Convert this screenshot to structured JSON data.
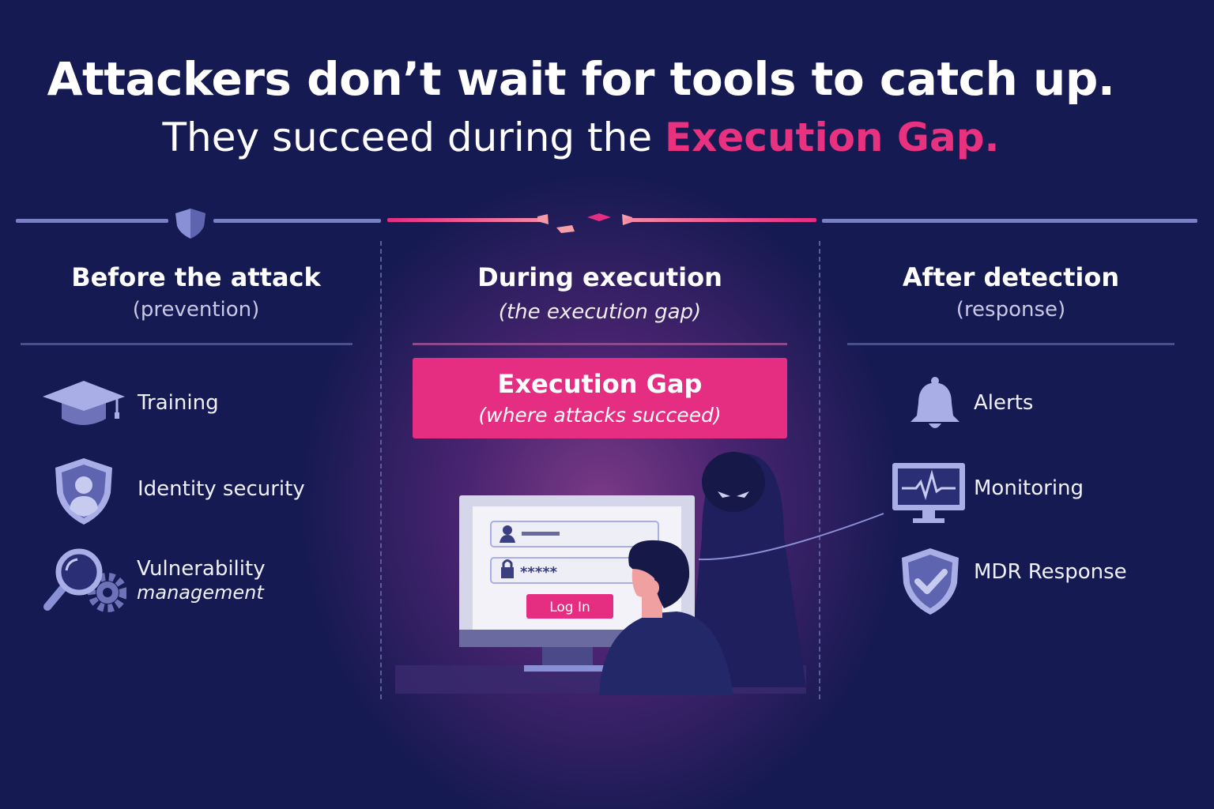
{
  "headline": {
    "line1": "Attackers don’t wait for tools to catch up.",
    "line2_prefix": "They succeed during the ",
    "line2_highlight": "Execution Gap."
  },
  "colors": {
    "background": "#161a52",
    "accent": "#e8327f",
    "timeline_neutral": "#7a80c8"
  },
  "columns": [
    {
      "title": "Before the attack",
      "subtitle": "(prevention)",
      "items": [
        {
          "icon": "graduation-cap-icon",
          "label": "Training"
        },
        {
          "icon": "shield-user-icon",
          "label": "Identity security"
        },
        {
          "icon": "magnifier-gear-icon",
          "label": "Vulnerability",
          "label2": "management"
        }
      ]
    },
    {
      "title": "During execution",
      "subtitle": "(the execution gap)",
      "gap_box": {
        "title": "Execution Gap",
        "subtitle": "(where attacks succeed)"
      },
      "illustration": {
        "login_button": "Log In",
        "password_mask": "*****"
      }
    },
    {
      "title": "After detection",
      "subtitle": "(response)",
      "items": [
        {
          "icon": "bell-icon",
          "label": "Alerts"
        },
        {
          "icon": "monitor-pulse-icon",
          "label": "Monitoring"
        },
        {
          "icon": "shield-check-icon",
          "label": "MDR Response"
        }
      ]
    }
  ]
}
